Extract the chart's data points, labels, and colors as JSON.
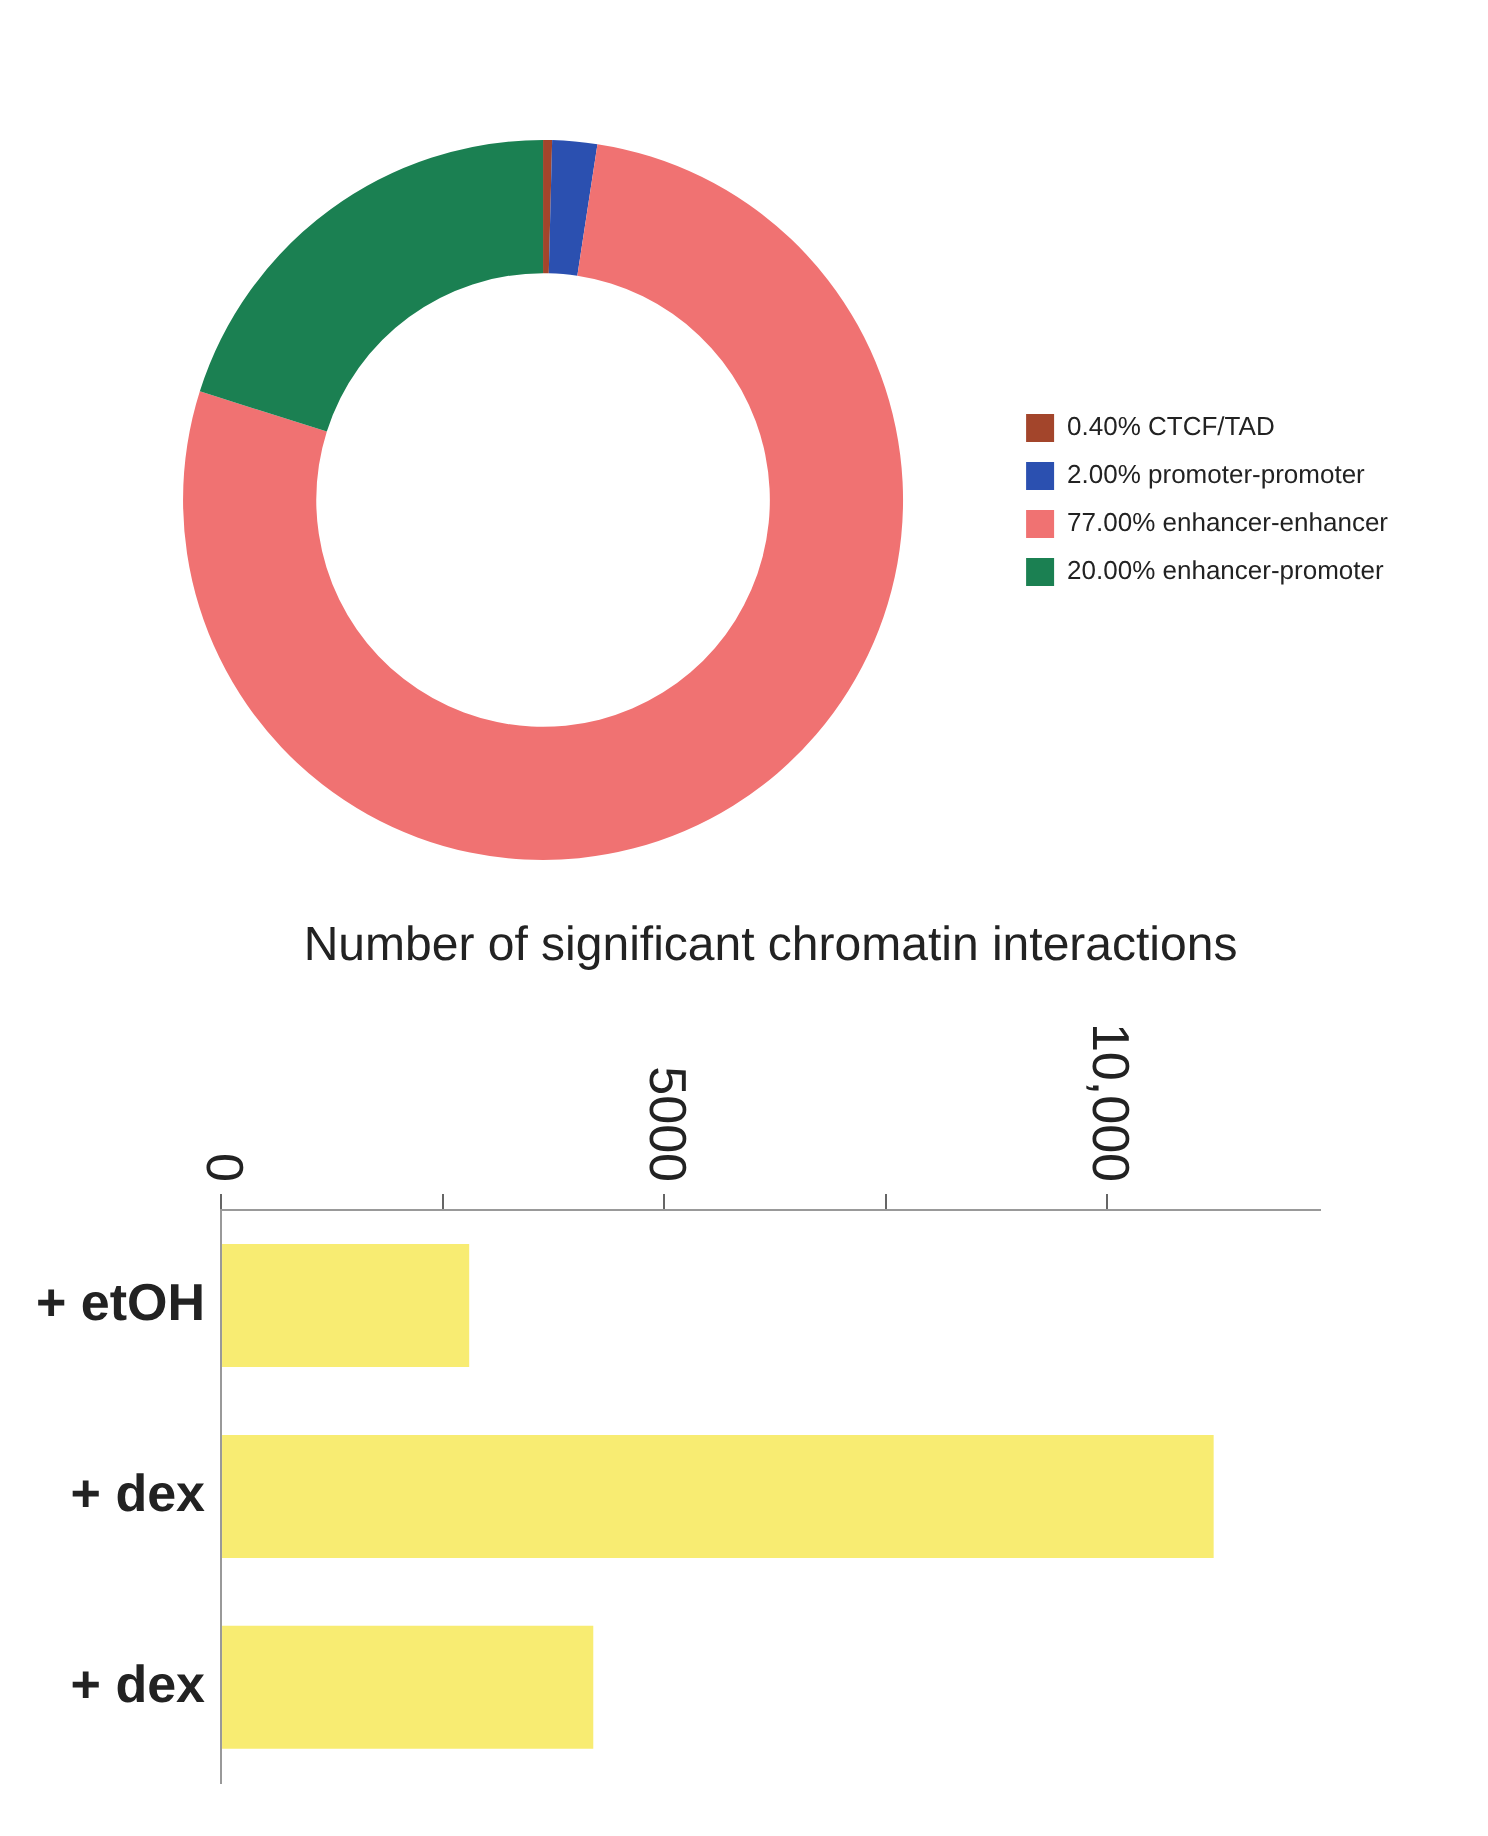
{
  "chart_data": [
    {
      "type": "donut",
      "categories": [
        "CTCF/TAD",
        "promoter-promoter",
        "enhancer-enhancer",
        "enhancer-promoter"
      ],
      "values": [
        0.4,
        2,
        77,
        20
      ],
      "value_labels": [
        "0.40%",
        "2.00%",
        "77.00%",
        "20.00%"
      ],
      "colors": [
        "#a3452b",
        "#2b50b0",
        "#f07272",
        "#1b8052"
      ],
      "legend": "right"
    },
    {
      "type": "bar",
      "orientation": "horizontal",
      "xlabel": "Number of significant chromatin interactions",
      "categories": [
        "+ etOH",
        "+ dex",
        "+ dex"
      ],
      "values": [
        2800,
        11200,
        4200
      ],
      "color": "#f8ec72",
      "xlim": [
        0,
        12400
      ],
      "xticks": [
        0,
        {
          "value": 2500,
          "label": null
        },
        5000,
        {
          "value": 7500,
          "label": null
        },
        {
          "value": 10000,
          "label": "10,000"
        }
      ],
      "grid": false
    }
  ]
}
